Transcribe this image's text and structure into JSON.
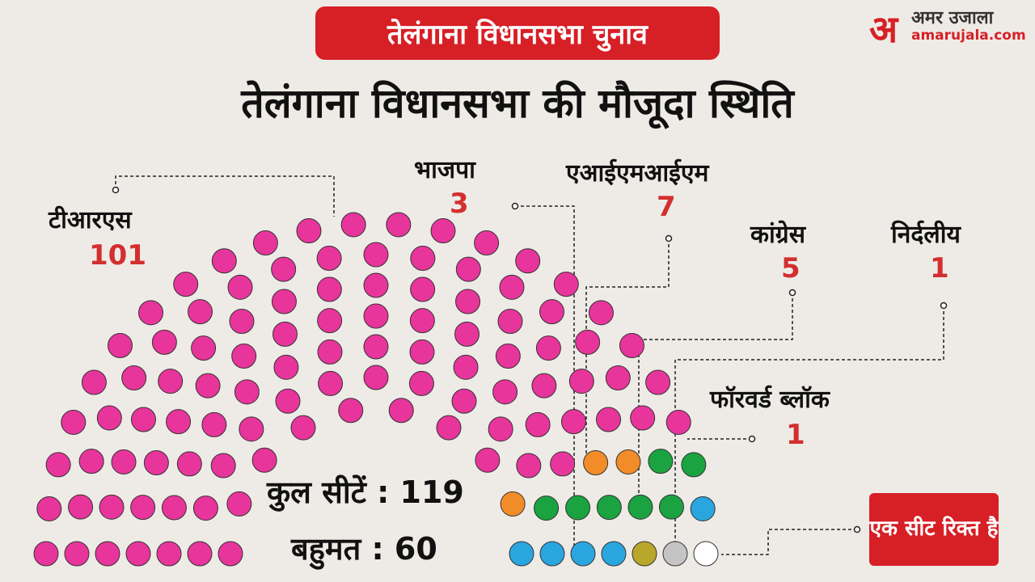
{
  "header": {
    "badge": "तेलंगाना विधानसभा चुनाव",
    "title": "तेलंगाना विधानसभा की मौजूदा स्थिति",
    "logo": {
      "mark": "अ",
      "name": "अमर उजाला",
      "site": "amarujala.com"
    }
  },
  "chart_data": {
    "type": "parliament",
    "categories": [
      "टीआरएस",
      "भाजपा",
      "एआईएमआईएम",
      "कांग्रेस",
      "फॉरवर्ड ब्लॉक",
      "निर्दलीय",
      "एक सीट रिक्त है"
    ],
    "values": [
      101,
      3,
      7,
      5,
      1,
      1,
      1
    ],
    "colors": [
      "#e8359b",
      "#f28c28",
      "#1aa340",
      "#2aa6df",
      "#b9a72c",
      "#c4c4c4",
      "#ffffff"
    ],
    "total_label": "कुल सीटें : 119",
    "majority_label": "बहुमत : 60"
  }
}
